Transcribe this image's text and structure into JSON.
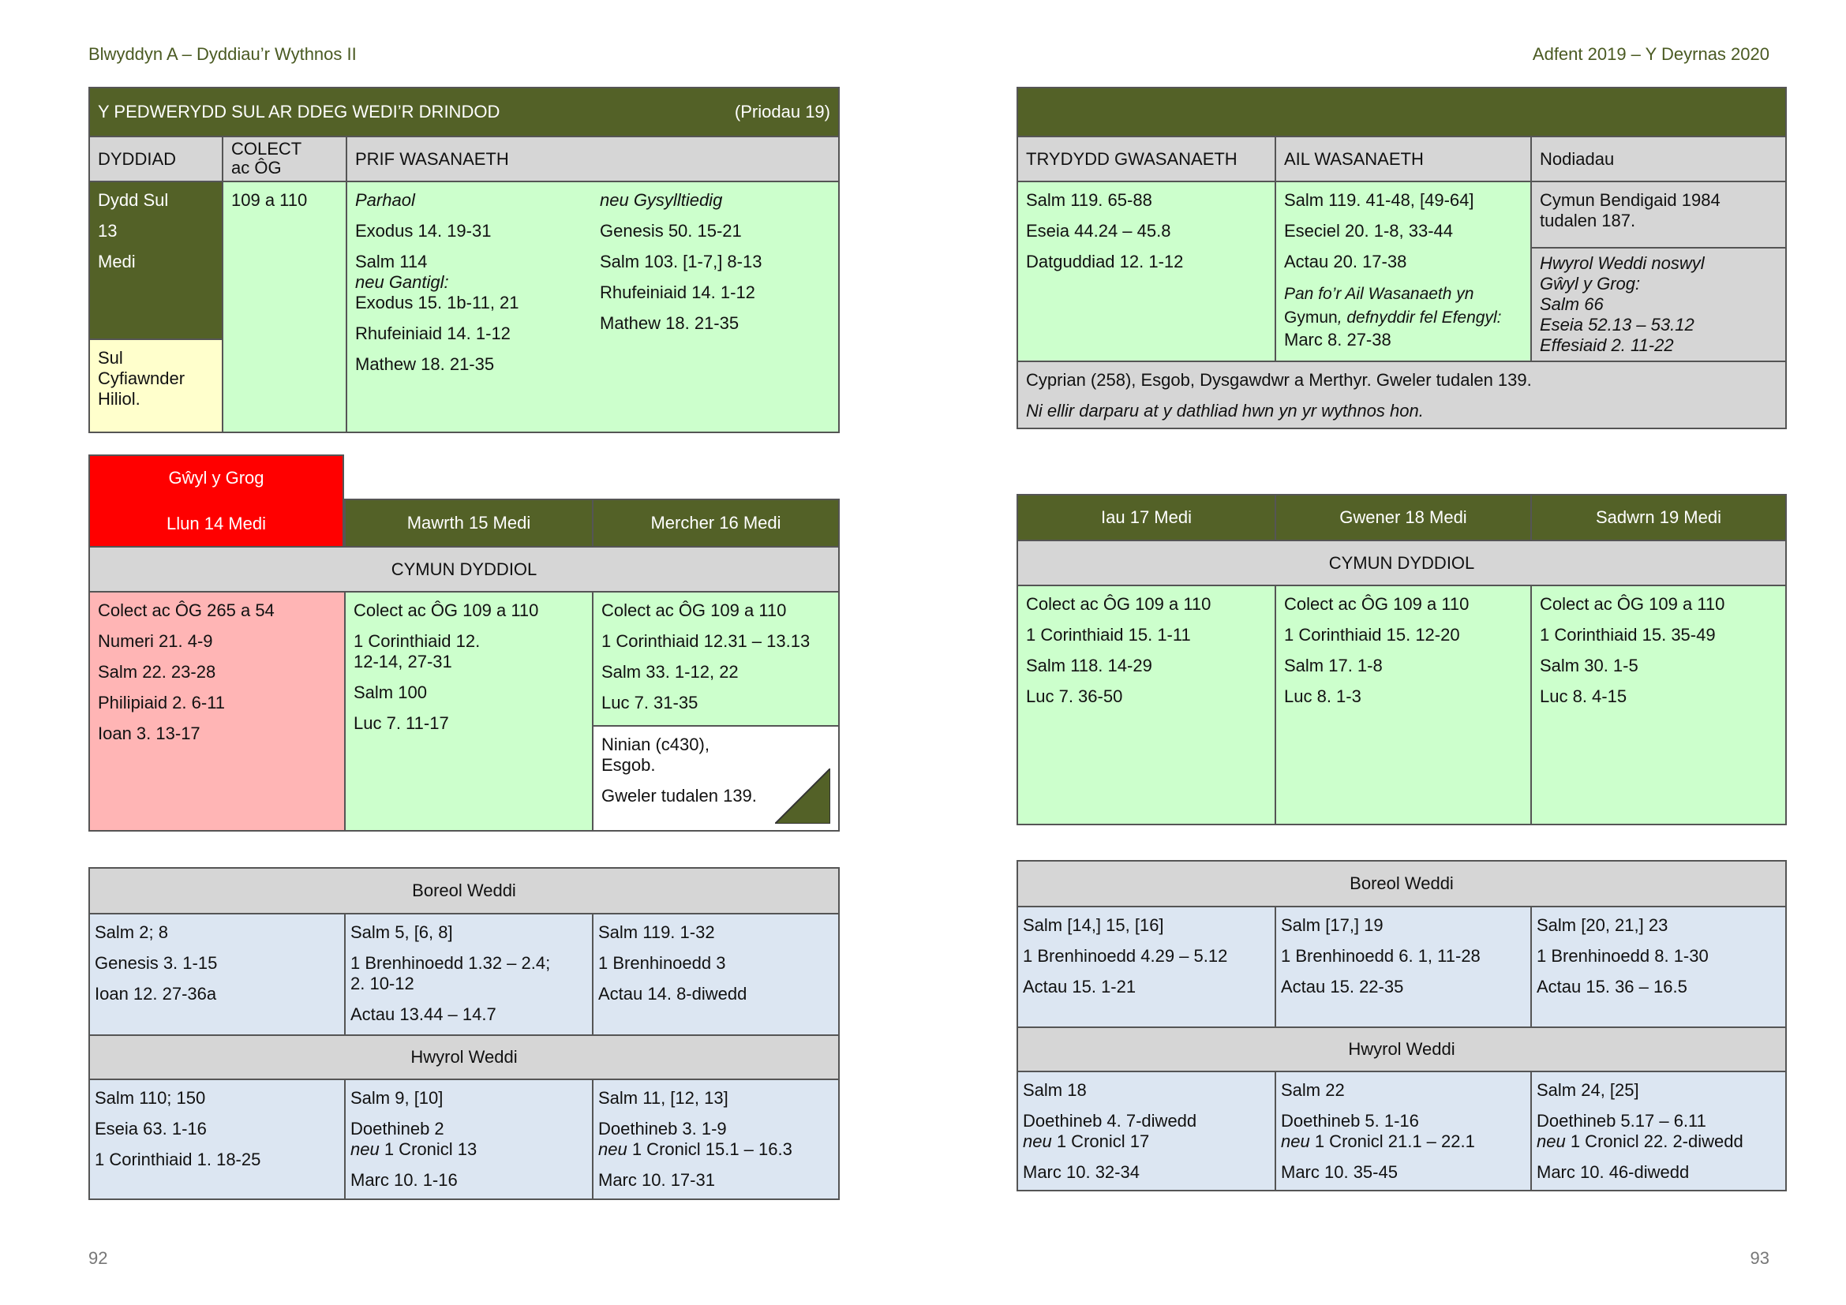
{
  "header": {
    "left": "Blwyddyn A – Dyddiau’r Wythnos II",
    "right": "Adfent 2019 – Y Deyrnas 2020"
  },
  "page_numbers": {
    "left": "92",
    "right": "93"
  },
  "sunday": {
    "title": "Y PEDWERYDD SUL AR DDEG WEDI’R DRINDOD",
    "note": "(Priodau 19)",
    "col_headers": {
      "day": "DYDDIAD",
      "collect_1": "COLECT",
      "collect_2": "ac ÔG",
      "main": "PRIF WASANAETH"
    },
    "day": [
      "Dydd Sul",
      "13",
      "Medi"
    ],
    "day_note": [
      "Sul",
      "Cyfiawnder",
      "Hiliol."
    ],
    "collect": "109 a 110",
    "continuous": {
      "heading": "Parhaol",
      "l1": "Exodus 14. 19-31",
      "l2": "Salm 114",
      "l3": "neu Gantigl:",
      "l4": "Exodus 15. 1b-11, 21",
      "l5": "Rhufeiniaid 14. 1-12",
      "l6": "Mathew 18. 21-35"
    },
    "related": {
      "heading": "neu Gysylltiedig",
      "l1": "Genesis 50. 15-21",
      "l2": "Salm 103. [1-7,] 8-13",
      "l3": "Rhufeiniaid 14. 1-12",
      "l4": "Mathew 18. 21-35"
    },
    "third_header": "TRYDYDD GWASANAETH",
    "second_header": "AIL WASANAETH",
    "notes_header": "Nodiadau",
    "third": {
      "l1": "Salm 119. 65-88",
      "l2": "Eseia 44.24 – 45.8",
      "l3": "Datguddiad 12. 1-12"
    },
    "second": {
      "l1": "Salm 119. 41-48, [49-64]",
      "l2": "Eseciel 20. 1-8, 33-44",
      "l3": "Actau 20. 17-38",
      "l4": "Pan fo’r Ail Wasanaeth yn",
      "l5a": "Gymun",
      "l5b": ", defnyddir fel Efengyl:",
      "l6": "Marc 8. 27-38"
    },
    "notes1": {
      "l1": "Cymun Bendigaid 1984",
      "l2": "tudalen 187."
    },
    "notes2": {
      "l1": "Hwyrol Weddi noswyl",
      "l2": "Gŵyl y Grog:",
      "l3": "Salm 66",
      "l4": "Eseia 52.13 – 53.12",
      "l5": "Effesiaid 2. 11-22"
    },
    "bottom": {
      "l1": "Cyprian (258), Esgob, Dysgawdwr a Merthyr. Gweler tudalen 139.",
      "l2": "Ni ellir darparu at y dathliad hwn yn yr wythnos hon."
    }
  },
  "week_left": {
    "feast": "Gŵyl y Grog",
    "days": [
      "Llun 14 Medi",
      "Mawrth 15 Medi",
      "Mercher 16 Medi"
    ],
    "section": "CYMUN DYDDIOL",
    "mon": [
      "Colect ac ÔG 265 a 54",
      "Numeri 21. 4-9",
      "Salm 22. 23-28",
      "Philipiaid 2. 6-11",
      "Ioan 3. 13-17"
    ],
    "tue": {
      "l1": "Colect ac ÔG 109 a 110",
      "l2": "1 Corinthiaid 12.",
      "l3": "12-14, 27-31",
      "l4": "Salm 100",
      "l5": "Luc 7. 11-17"
    },
    "wed": [
      "Colect ac ÔG 109 a 110",
      "1 Corinthiaid 12.31 – 13.13",
      "Salm 33. 1-12, 22",
      "Luc 7. 31-35"
    ],
    "wed_note": {
      "l1": "Ninian (c430),",
      "l2": "Esgob.",
      "l3": "Gweler tudalen 139."
    }
  },
  "week_right": {
    "days": [
      "Iau 17 Medi",
      "Gwener 18 Medi",
      "Sadwrn 19 Medi"
    ],
    "section": "CYMUN DYDDIOL",
    "thu": [
      "Colect ac ÔG 109 a 110",
      "1 Corinthiaid 15. 1-11",
      "Salm 118. 14-29",
      "Luc 7. 36-50"
    ],
    "fri": [
      "Colect ac ÔG 109 a 110",
      "1 Corinthiaid 15. 12-20",
      "Salm 17. 1-8",
      "Luc 8. 1-3"
    ],
    "sat": [
      "Colect ac ÔG 109 a 110",
      "1 Corinthiaid 15. 35-49",
      "Salm 30. 1-5",
      "Luc 8. 4-15"
    ]
  },
  "offices_left": {
    "morning_title": "Boreol Weddi",
    "evening_title": "Hwyrol Weddi",
    "m_mon": [
      "Salm 2; 8",
      "Genesis 3. 1-15",
      "Ioan 12. 27-36a"
    ],
    "m_tue": {
      "l1": "Salm 5, [6, 8]",
      "l2": "1 Brenhinoedd 1.32 – 2.4;",
      "l3": "2. 10-12",
      "l4": "Actau 13.44 – 14.7"
    },
    "m_wed": [
      "Salm 119. 1-32",
      "1 Brenhinoedd 3",
      "Actau 14. 8-diwedd"
    ],
    "e_mon": [
      "Salm 110; 150",
      "Eseia 63. 1-16",
      "1 Corinthiaid 1. 18-25"
    ],
    "e_tue": {
      "l1": "Salm 9, [10]",
      "l2": "Doethineb 2",
      "l3a": "neu",
      "l3b": " 1 Cronicl 13",
      "l4": "Marc 10. 1-16"
    },
    "e_wed": {
      "l1": "Salm 11, [12, 13]",
      "l2": "Doethineb 3. 1-9",
      "l3a": "neu",
      "l3b": " 1 Cronicl 15.1 – 16.3",
      "l4": "Marc 10. 17-31"
    }
  },
  "offices_right": {
    "morning_title": "Boreol Weddi",
    "evening_title": "Hwyrol Weddi",
    "m_thu": [
      "Salm [14,] 15, [16]",
      "1 Brenhinoedd 4.29 – 5.12",
      "Actau 15. 1-21"
    ],
    "m_fri": [
      "Salm [17,] 19",
      "1 Brenhinoedd 6. 1, 11-28",
      "Actau 15. 22-35"
    ],
    "m_sat": [
      "Salm [20, 21,] 23",
      "1 Brenhinoedd 8. 1-30",
      "Actau 15. 36 – 16.5"
    ],
    "e_thu": {
      "l1": "Salm 18",
      "l2": "Doethineb 4. 7-diwedd",
      "l3a": "neu",
      "l3b": " 1 Cronicl 17",
      "l4": "Marc 10. 32-34"
    },
    "e_fri": {
      "l1": "Salm 22",
      "l2": "Doethineb 5. 1-16",
      "l3a": "neu",
      "l3b": " 1 Cronicl 21.1 – 22.1",
      "l4": "Marc 10. 35-45"
    },
    "e_sat": {
      "l1": "Salm 24, [25]",
      "l2": "Doethineb 5.17 – 6.11",
      "l3a": "neu",
      "l3b": " 1 Cronicl 22. 2-diwedd",
      "l4": "Marc 10. 46-diwedd"
    }
  },
  "colors": {
    "olive": "#536127",
    "grey": "#d6d6d6",
    "green": "#ccffcc",
    "pink": "#ffb5b5",
    "blue": "#dce6f2",
    "yellow": "#ffffcc",
    "red": "#ff0000"
  }
}
